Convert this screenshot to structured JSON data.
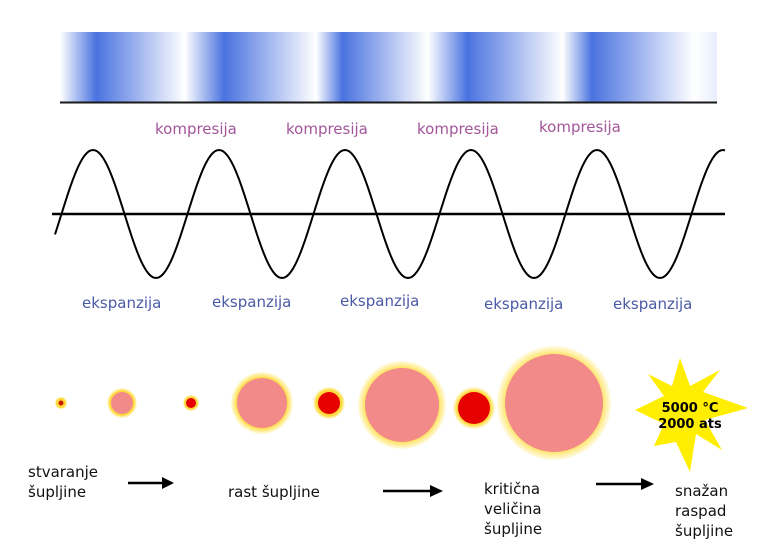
{
  "labels": {
    "compression": [
      "kompresija",
      "kompresija",
      "kompresija",
      "kompresija"
    ],
    "expansion": [
      "ekspanzija",
      "ekspanzija",
      "ekspanzija",
      "ekspanzija",
      "ekspanzija"
    ]
  },
  "stages": {
    "s1_line1": "stvaranje",
    "s1_line2": "šupljine",
    "s2": "rast šupljine",
    "s3_line1": "kritična",
    "s3_line2": "veličina",
    "s3_line3": "šupljine",
    "s4_line1": "snažan",
    "s4_line2": "raspad",
    "s4_line3": "šupljine"
  },
  "implosion": {
    "temperature": "5000 °C",
    "pressure": "2000 ats"
  },
  "colors": {
    "band_dark": "#4a73e0",
    "band_light": "#ffffff",
    "bubble_pink": "#f28a8a",
    "bubble_red": "#e60000",
    "halo_yellow": "#ffe54a",
    "star_yellow": "#ffee00",
    "kompresija_text": "#a3569a",
    "ekspanzija_text": "#4a5aa5"
  }
}
